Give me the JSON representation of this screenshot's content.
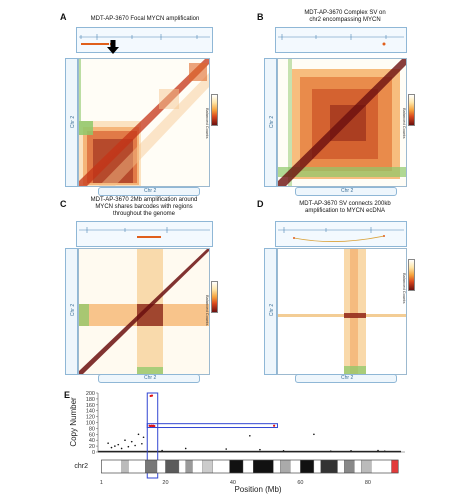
{
  "panels": [
    {
      "label": "A",
      "title_lines": [
        "MDT-AP-3670 Focal MYCN amplification"
      ],
      "row_axis": "Chr 2",
      "col_axis": "Chr 2",
      "colorbar_label": "Balanced Counts"
    },
    {
      "label": "B",
      "title_lines": [
        "MDT-AP-3670 Complex SV on",
        "chr2 encompassing MYCN"
      ],
      "row_axis": "Chr 2",
      "col_axis": "Chr 2",
      "colorbar_label": "Balanced Counts"
    },
    {
      "label": "C",
      "title_lines": [
        "MDT-AP-3670 2Mb amplification around",
        "MYCN shares barcodes with regions",
        "throughout the genome"
      ],
      "row_axis": "Chr 2",
      "col_axis": "Chr 2",
      "colorbar_label": "Balanced Counts"
    },
    {
      "label": "D",
      "title_lines": [
        "MDT-AP-3670 SV connects 200kb",
        "amplification to MYCN ecDNA"
      ],
      "row_axis": "Chr 2",
      "col_axis": "Chr 2",
      "colorbar_label": "Balanced Counts"
    }
  ],
  "panel_e": {
    "label": "E",
    "chromosome": "chr2",
    "chart_data": {
      "type": "scatter",
      "title": "",
      "xlabel": "Position (Mb)",
      "ylabel": "Copy Number",
      "xlim": [
        0,
        91
      ],
      "ylim": [
        0,
        200
      ],
      "x_ticks": [
        1,
        20,
        40,
        60,
        80
      ],
      "y_ticks": [
        0,
        20,
        40,
        60,
        80,
        100,
        120,
        140,
        160,
        180,
        200
      ],
      "series": [
        {
          "color": "#111111",
          "points": [
            [
              3,
              30
            ],
            [
              4,
              15
            ],
            [
              5,
              20
            ],
            [
              6,
              25
            ],
            [
              7,
              12
            ],
            [
              8,
              40
            ],
            [
              9,
              18
            ],
            [
              10,
              35
            ],
            [
              11,
              22
            ],
            [
              12,
              60
            ],
            [
              13,
              28
            ],
            [
              13.5,
              50
            ],
            [
              19,
              5
            ],
            [
              26,
              12
            ],
            [
              38,
              10
            ],
            [
              45,
              55
            ],
            [
              48,
              8
            ],
            [
              55,
              4
            ],
            [
              64,
              60
            ],
            [
              69,
              3
            ],
            [
              75,
              4
            ],
            [
              83,
              5
            ],
            [
              85,
              3
            ]
          ]
        },
        {
          "color": "#e01414",
          "points": [
            [
              15.6,
              190
            ],
            [
              16.0,
              191
            ],
            [
              15.3,
              89
            ],
            [
              15.6,
              88
            ],
            [
              15.9,
              89
            ],
            [
              16.2,
              88
            ],
            [
              16.4,
              89
            ],
            [
              16.7,
              88
            ],
            [
              52.2,
              89
            ]
          ]
        }
      ],
      "highlight_boxes": [
        {
          "color": "#3246d2",
          "x": [
            14.6,
            17.7
          ],
          "y": [
            -5,
            200
          ]
        },
        {
          "color": "#3246d2",
          "x": [
            14.6,
            53.2
          ],
          "y": [
            83,
            96
          ]
        }
      ],
      "ideogram_bands": [
        {
          "x": [
            1,
            7
          ],
          "stain": "#ffffff"
        },
        {
          "x": [
            7,
            9
          ],
          "stain": "#bbbbbb"
        },
        {
          "x": [
            9,
            14
          ],
          "stain": "#ffffff"
        },
        {
          "x": [
            14,
            17.5
          ],
          "stain": "#777777"
        },
        {
          "x": [
            17.5,
            20
          ],
          "stain": "#ffffff"
        },
        {
          "x": [
            20,
            24
          ],
          "stain": "#5a5a5a"
        },
        {
          "x": [
            24,
            26
          ],
          "stain": "#ffffff"
        },
        {
          "x": [
            26,
            28
          ],
          "stain": "#9a9a9a"
        },
        {
          "x": [
            28,
            31
          ],
          "stain": "#ffffff"
        },
        {
          "x": [
            31,
            34
          ],
          "stain": "#cccccc"
        },
        {
          "x": [
            34,
            39
          ],
          "stain": "#ffffff"
        },
        {
          "x": [
            39,
            43
          ],
          "stain": "#111111"
        },
        {
          "x": [
            43,
            46
          ],
          "stain": "#ffffff"
        },
        {
          "x": [
            46,
            52
          ],
          "stain": "#111111"
        },
        {
          "x": [
            52,
            54
          ],
          "stain": "#ffffff"
        },
        {
          "x": [
            54,
            57
          ],
          "stain": "#aaaaaa"
        },
        {
          "x": [
            57,
            60
          ],
          "stain": "#ffffff"
        },
        {
          "x": [
            60,
            64
          ],
          "stain": "#111111"
        },
        {
          "x": [
            64,
            66
          ],
          "stain": "#ffffff"
        },
        {
          "x": [
            66,
            71
          ],
          "stain": "#333333"
        },
        {
          "x": [
            71,
            73
          ],
          "stain": "#ffffff"
        },
        {
          "x": [
            73,
            76
          ],
          "stain": "#888888"
        },
        {
          "x": [
            76,
            78
          ],
          "stain": "#ffffff"
        },
        {
          "x": [
            78,
            81
          ],
          "stain": "#bbbbbb"
        },
        {
          "x": [
            81,
            87
          ],
          "stain": "#ffffff"
        },
        {
          "x": [
            87,
            89
          ],
          "stain": "#e23a3a"
        }
      ]
    }
  }
}
